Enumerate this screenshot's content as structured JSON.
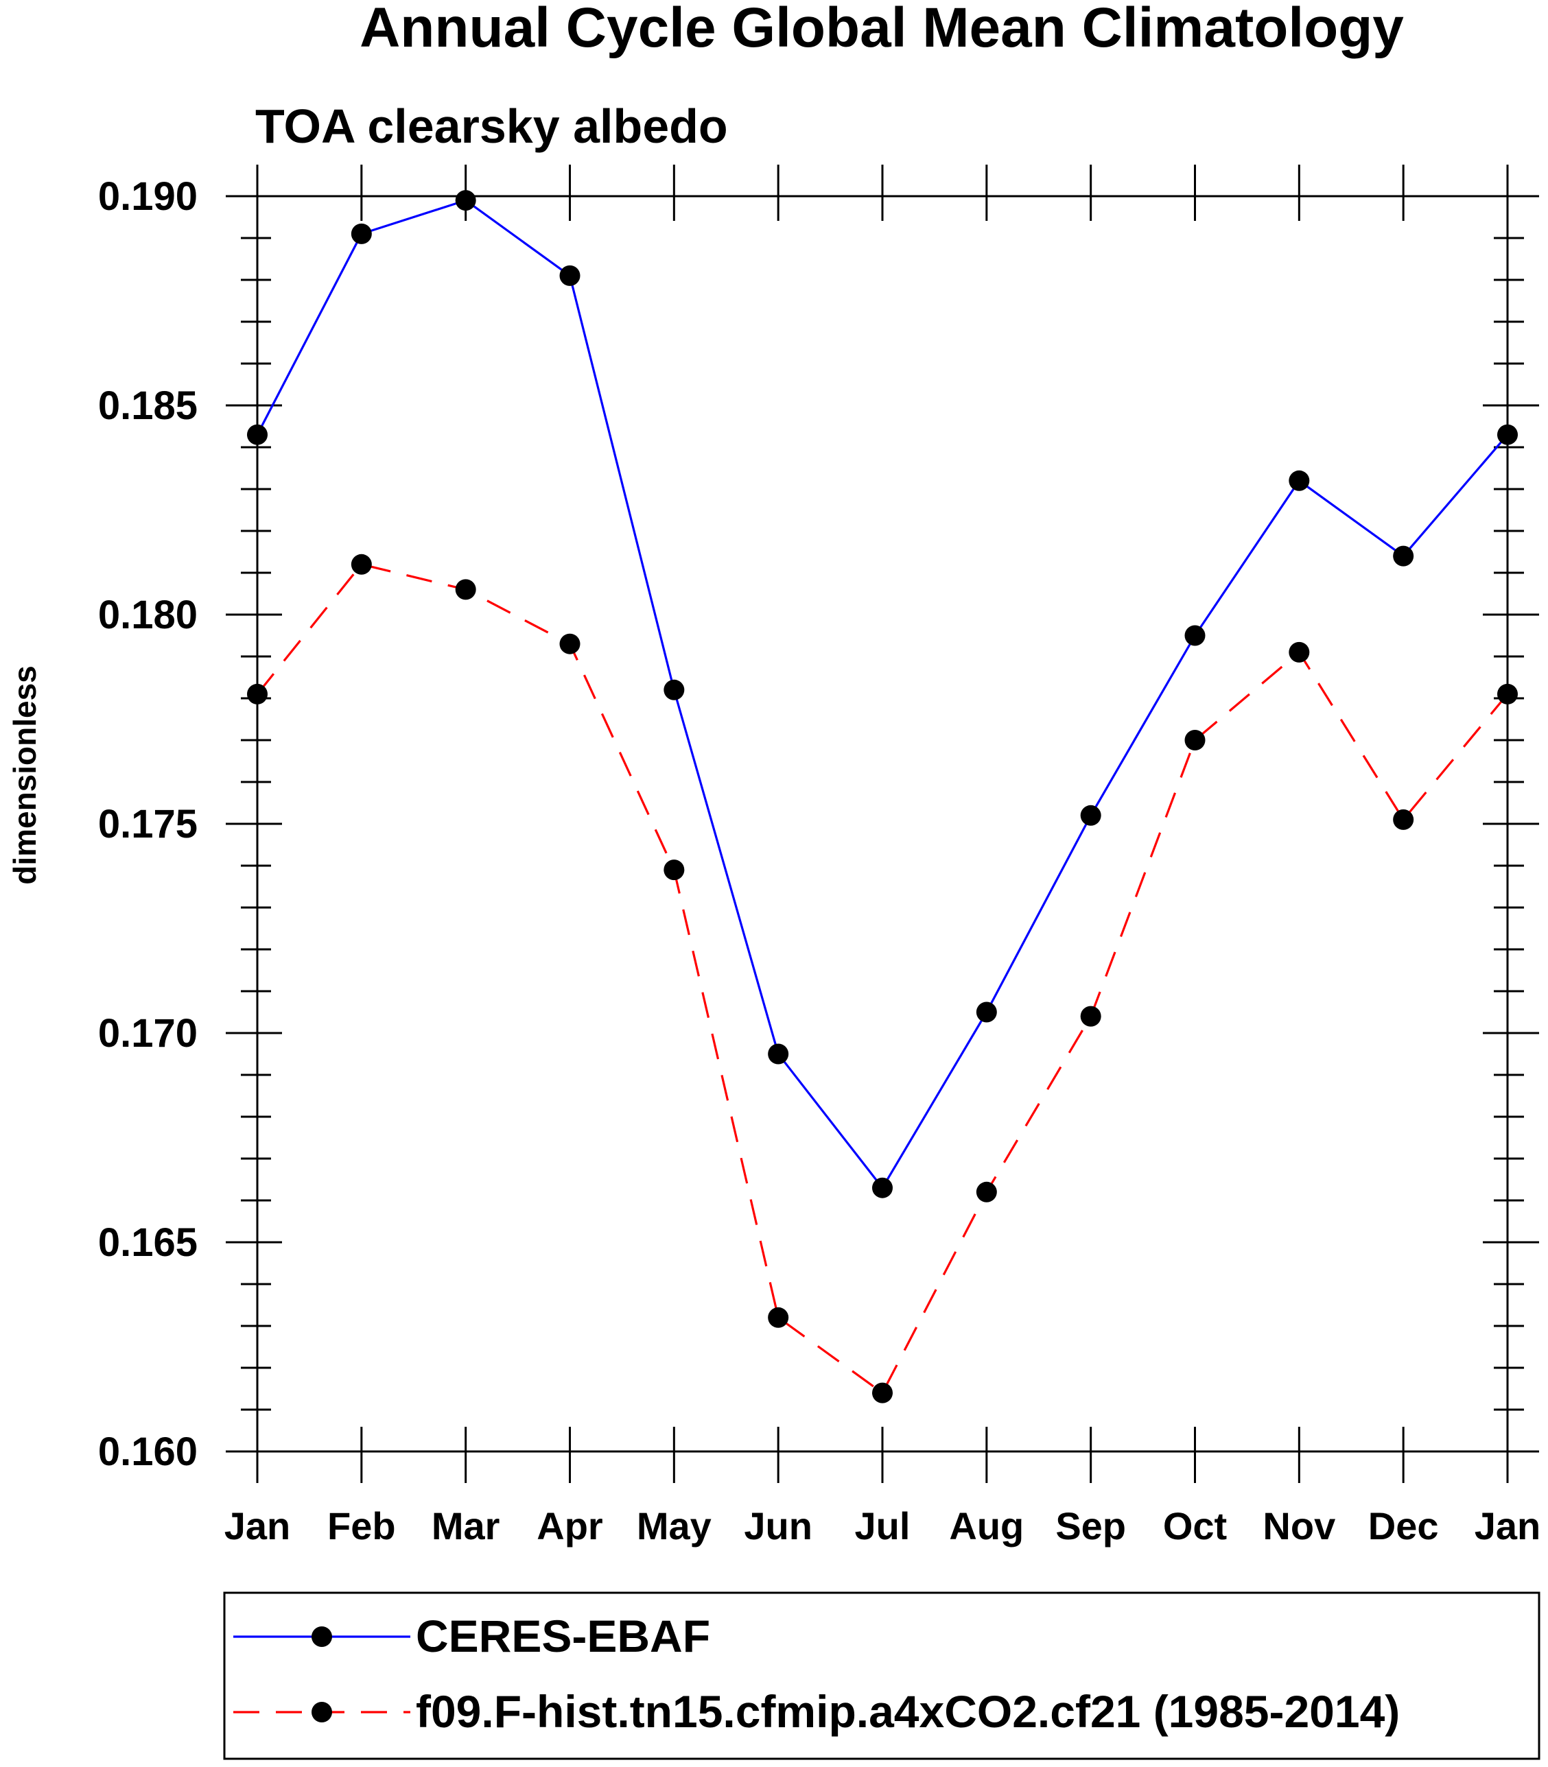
{
  "chart_data": {
    "type": "line",
    "title": "Annual Cycle Global Mean Climatology",
    "subtitle": "TOA clearsky albedo",
    "xlabel": "",
    "ylabel": "dimensionless",
    "categories": [
      "Jan",
      "Feb",
      "Mar",
      "Apr",
      "May",
      "Jun",
      "Jul",
      "Aug",
      "Sep",
      "Oct",
      "Nov",
      "Dec",
      "Jan"
    ],
    "ylim": [
      0.16,
      0.19
    ],
    "yticks": [
      "0.160",
      "0.165",
      "0.170",
      "0.175",
      "0.180",
      "0.185",
      "0.190"
    ],
    "grid": false,
    "legend_position": "bottom",
    "series": [
      {
        "name": "CERES-EBAF",
        "color": "#0000ff",
        "line_style": "solid",
        "marker": "filled-circle",
        "values": [
          0.1843,
          0.1891,
          0.1899,
          0.1881,
          0.1782,
          0.1695,
          0.1663,
          0.1705,
          0.1752,
          0.1795,
          0.1832,
          0.1814,
          0.1843
        ]
      },
      {
        "name": "f09.F-hist.tn15.cfmip.a4xCO2.cf21 (1985-2014)",
        "color": "#ff0000",
        "line_style": "dashed",
        "marker": "filled-circle",
        "values": [
          0.1781,
          0.1812,
          0.1806,
          0.1793,
          0.1739,
          0.1632,
          0.1614,
          0.1662,
          0.1704,
          0.177,
          0.1791,
          0.1751,
          0.1781
        ]
      }
    ]
  }
}
